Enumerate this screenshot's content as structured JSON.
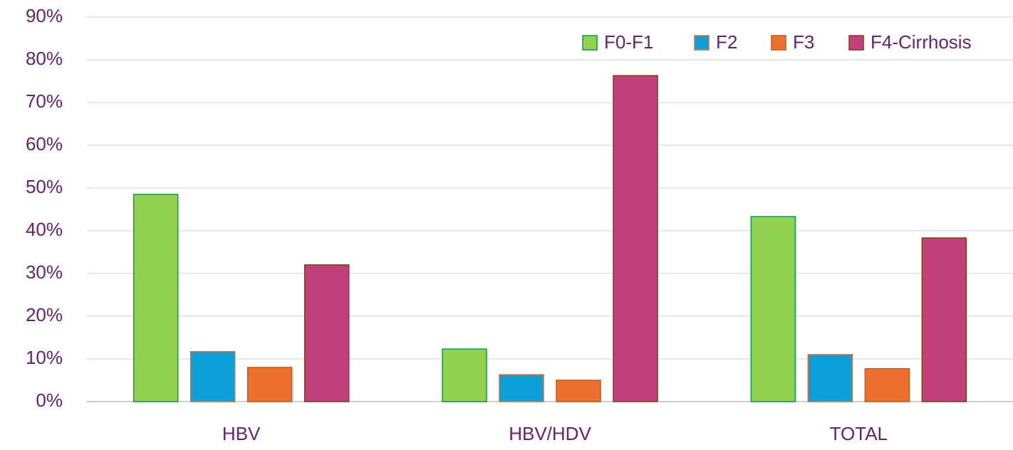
{
  "chart_data": {
    "type": "bar",
    "categories": [
      "HBV",
      "HBV/HDV",
      "TOTAL"
    ],
    "series": [
      {
        "name": "F0-F1",
        "color": "#92d050",
        "edge": "#00a050",
        "values": [
          48.5,
          12.3,
          43.3
        ]
      },
      {
        "name": "F2",
        "color": "#0ea0d8",
        "edge": "#d07030",
        "values": [
          11.7,
          6.3,
          11.0
        ]
      },
      {
        "name": "F3",
        "color": "#ed7031",
        "edge": "#c55a11",
        "values": [
          8.0,
          5.0,
          7.7
        ]
      },
      {
        "name": "F4-Cirrhosis",
        "color": "#c2407b",
        "edge": "#843c0c",
        "values": [
          32.0,
          76.3,
          38.3
        ]
      }
    ],
    "ylim": [
      0,
      90
    ],
    "yticks": [
      {
        "value": 0,
        "label": "0%"
      },
      {
        "value": 10,
        "label": "10%"
      },
      {
        "value": 20,
        "label": "20%"
      },
      {
        "value": 30,
        "label": "30%"
      },
      {
        "value": 40,
        "label": "40%"
      },
      {
        "value": 50,
        "label": "50%"
      },
      {
        "value": 60,
        "label": "60%"
      },
      {
        "value": 70,
        "label": "70%"
      },
      {
        "value": 80,
        "label": "80%"
      },
      {
        "value": 90,
        "label": "90%"
      }
    ],
    "grid": true,
    "legend": "top-right"
  }
}
